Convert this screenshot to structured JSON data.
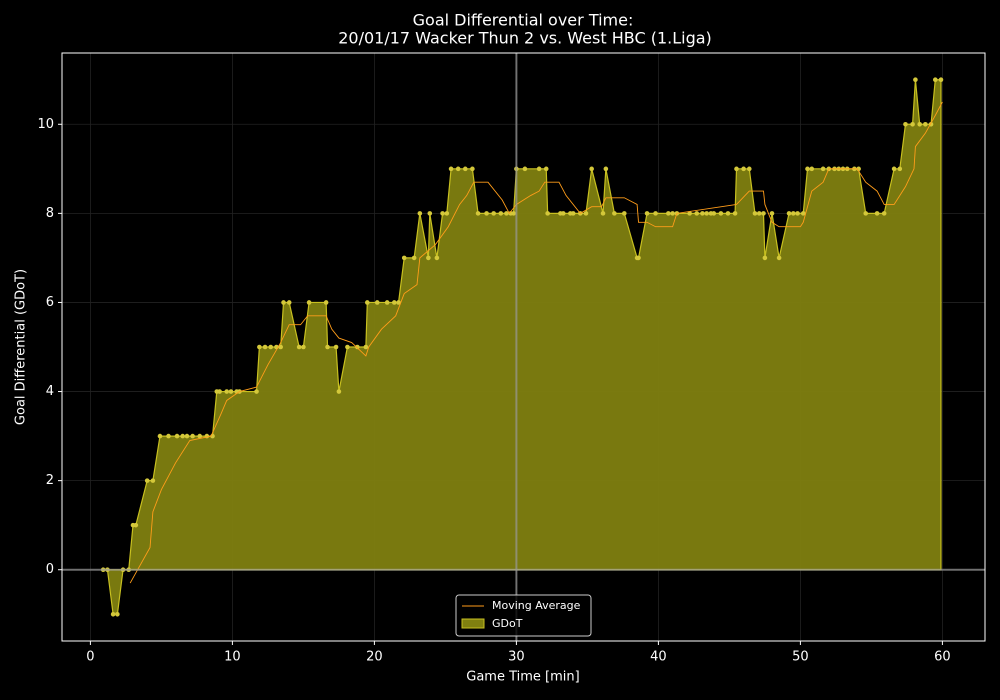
{
  "chart_data": {
    "type": "area",
    "title": "Goal Differential over Time:",
    "subtitle": "20/01/17 Wacker Thun 2  vs.  West HBC (1.Liga)",
    "xlabel": "Game Time [min]",
    "ylabel": "Goal Differential (GDoT)",
    "xlim": [
      -2,
      63
    ],
    "ylim": [
      -1.6,
      11.6
    ],
    "xticks": [
      0,
      10,
      20,
      30,
      40,
      50,
      60
    ],
    "yticks": [
      0,
      2,
      4,
      6,
      8,
      10
    ],
    "vline": 30,
    "hline": 0,
    "grid": true,
    "legend": "lower center",
    "series": [
      {
        "name": "Moving Average",
        "kind": "line",
        "color": "#ff9d1a",
        "x": [
          2.8,
          4.2,
          4.4,
          5,
          6,
          7,
          8.5,
          9.2,
          9.6,
          10.5,
          11.7,
          12.5,
          13.4,
          14,
          14.8,
          15.3,
          16.6,
          17,
          17.5,
          18.4,
          19.4,
          19.6,
          20.5,
          21.5,
          22.1,
          23,
          23.2,
          24.3,
          25.2,
          26,
          26.5,
          27,
          28,
          29,
          29.5,
          30,
          31,
          31.6,
          32,
          33,
          33.5,
          34.5,
          35.3,
          36,
          36.3,
          37.6,
          38.5,
          38.6,
          39.2,
          39.8,
          41,
          41.3,
          45.5,
          46.4,
          47.4,
          47.5,
          48,
          48.5,
          50,
          50.2,
          50.8,
          51.6,
          52,
          54,
          54.6,
          55.4,
          55.9,
          56.6,
          57.4,
          58,
          58.1,
          58.8,
          59.5,
          60
        ],
        "values": [
          -0.3,
          0.5,
          1.3,
          1.8,
          2.4,
          2.9,
          3.0,
          3.5,
          3.8,
          4.0,
          4.1,
          4.6,
          5.1,
          5.5,
          5.5,
          5.7,
          5.7,
          5.4,
          5.2,
          5.1,
          4.8,
          5.0,
          5.4,
          5.7,
          6.2,
          6.4,
          7.0,
          7.3,
          7.7,
          8.2,
          8.4,
          8.7,
          8.7,
          8.3,
          8.0,
          8.2,
          8.4,
          8.5,
          8.7,
          8.7,
          8.4,
          8.0,
          8.15,
          8.15,
          8.35,
          8.35,
          8.2,
          7.8,
          7.8,
          7.7,
          7.7,
          8.0,
          8.2,
          8.5,
          8.5,
          8.2,
          7.8,
          7.7,
          7.7,
          7.8,
          8.5,
          8.7,
          9.0,
          9.0,
          8.7,
          8.5,
          8.2,
          8.2,
          8.6,
          9.0,
          9.5,
          9.8,
          10.2,
          10.5
        ]
      },
      {
        "name": "GDoT",
        "kind": "area",
        "color": "#808010",
        "edge": "#c8c020",
        "marker": "#d4c83a",
        "x": [
          0.9,
          1.2,
          1.6,
          1.9,
          2.3,
          2.7,
          3.0,
          3.2,
          4.0,
          4.4,
          4.9,
          5.5,
          6.1,
          6.5,
          6.8,
          7.2,
          7.7,
          8.2,
          8.6,
          8.9,
          9.1,
          9.6,
          9.9,
          10.3,
          10.5,
          11.7,
          11.9,
          12.3,
          12.7,
          13.1,
          13.4,
          13.6,
          14.0,
          14.7,
          15.0,
          15.4,
          16.6,
          16.7,
          17.3,
          17.5,
          18.1,
          18.8,
          19.4,
          19.5,
          20.2,
          20.9,
          21.4,
          21.7,
          22.1,
          22.8,
          23.2,
          23.8,
          23.9,
          24.4,
          24.8,
          25.1,
          25.4,
          25.9,
          26.4,
          26.9,
          27.3,
          27.9,
          28.4,
          28.9,
          29.3,
          29.6,
          29.8,
          30.0,
          30.6,
          31.6,
          32.1,
          32.2,
          33.1,
          33.3,
          33.8,
          34.0,
          34.5,
          34.9,
          35.3,
          36.1,
          36.3,
          36.9,
          37.6,
          38.5,
          38.6,
          39.2,
          39.8,
          40.7,
          41.0,
          41.3,
          42.2,
          42.7,
          43.1,
          43.4,
          43.7,
          43.9,
          44.4,
          44.9,
          45.4,
          45.5,
          46.0,
          46.4,
          46.8,
          47.1,
          47.4,
          47.5,
          48.0,
          48.5,
          49.2,
          49.5,
          49.8,
          50.2,
          50.5,
          50.8,
          51.6,
          52.0,
          52.4,
          52.7,
          53.0,
          53.3,
          53.8,
          54.1,
          54.6,
          55.4,
          55.9,
          56.6,
          57.0,
          57.4,
          57.9,
          58.1,
          58.4,
          58.8,
          59.2,
          59.5,
          59.9
        ],
        "values": [
          0,
          0,
          -1,
          -1,
          0,
          0,
          1,
          1,
          2,
          2,
          3,
          3,
          3,
          3,
          3,
          3,
          3,
          3,
          3,
          4,
          4,
          4,
          4,
          4,
          4,
          4,
          5,
          5,
          5,
          5,
          5,
          6,
          6,
          5,
          5,
          6,
          6,
          5,
          5,
          4,
          5,
          5,
          5,
          6,
          6,
          6,
          6,
          6,
          7,
          7,
          8,
          7,
          8,
          7,
          8,
          8,
          9,
          9,
          9,
          9,
          8,
          8,
          8,
          8,
          8,
          8,
          8,
          9,
          9,
          9,
          9,
          8,
          8,
          8,
          8,
          8,
          8,
          8,
          9,
          8,
          9,
          8,
          8,
          7,
          7,
          8,
          8,
          8,
          8,
          8,
          8,
          8,
          8,
          8,
          8,
          8,
          8,
          8,
          8,
          9,
          9,
          9,
          8,
          8,
          8,
          7,
          8,
          7,
          8,
          8,
          8,
          8,
          9,
          9,
          9,
          9,
          9,
          9,
          9,
          9,
          9,
          9,
          8,
          8,
          8,
          9,
          9,
          10,
          10,
          11,
          10,
          10,
          10,
          11,
          11
        ]
      }
    ]
  }
}
